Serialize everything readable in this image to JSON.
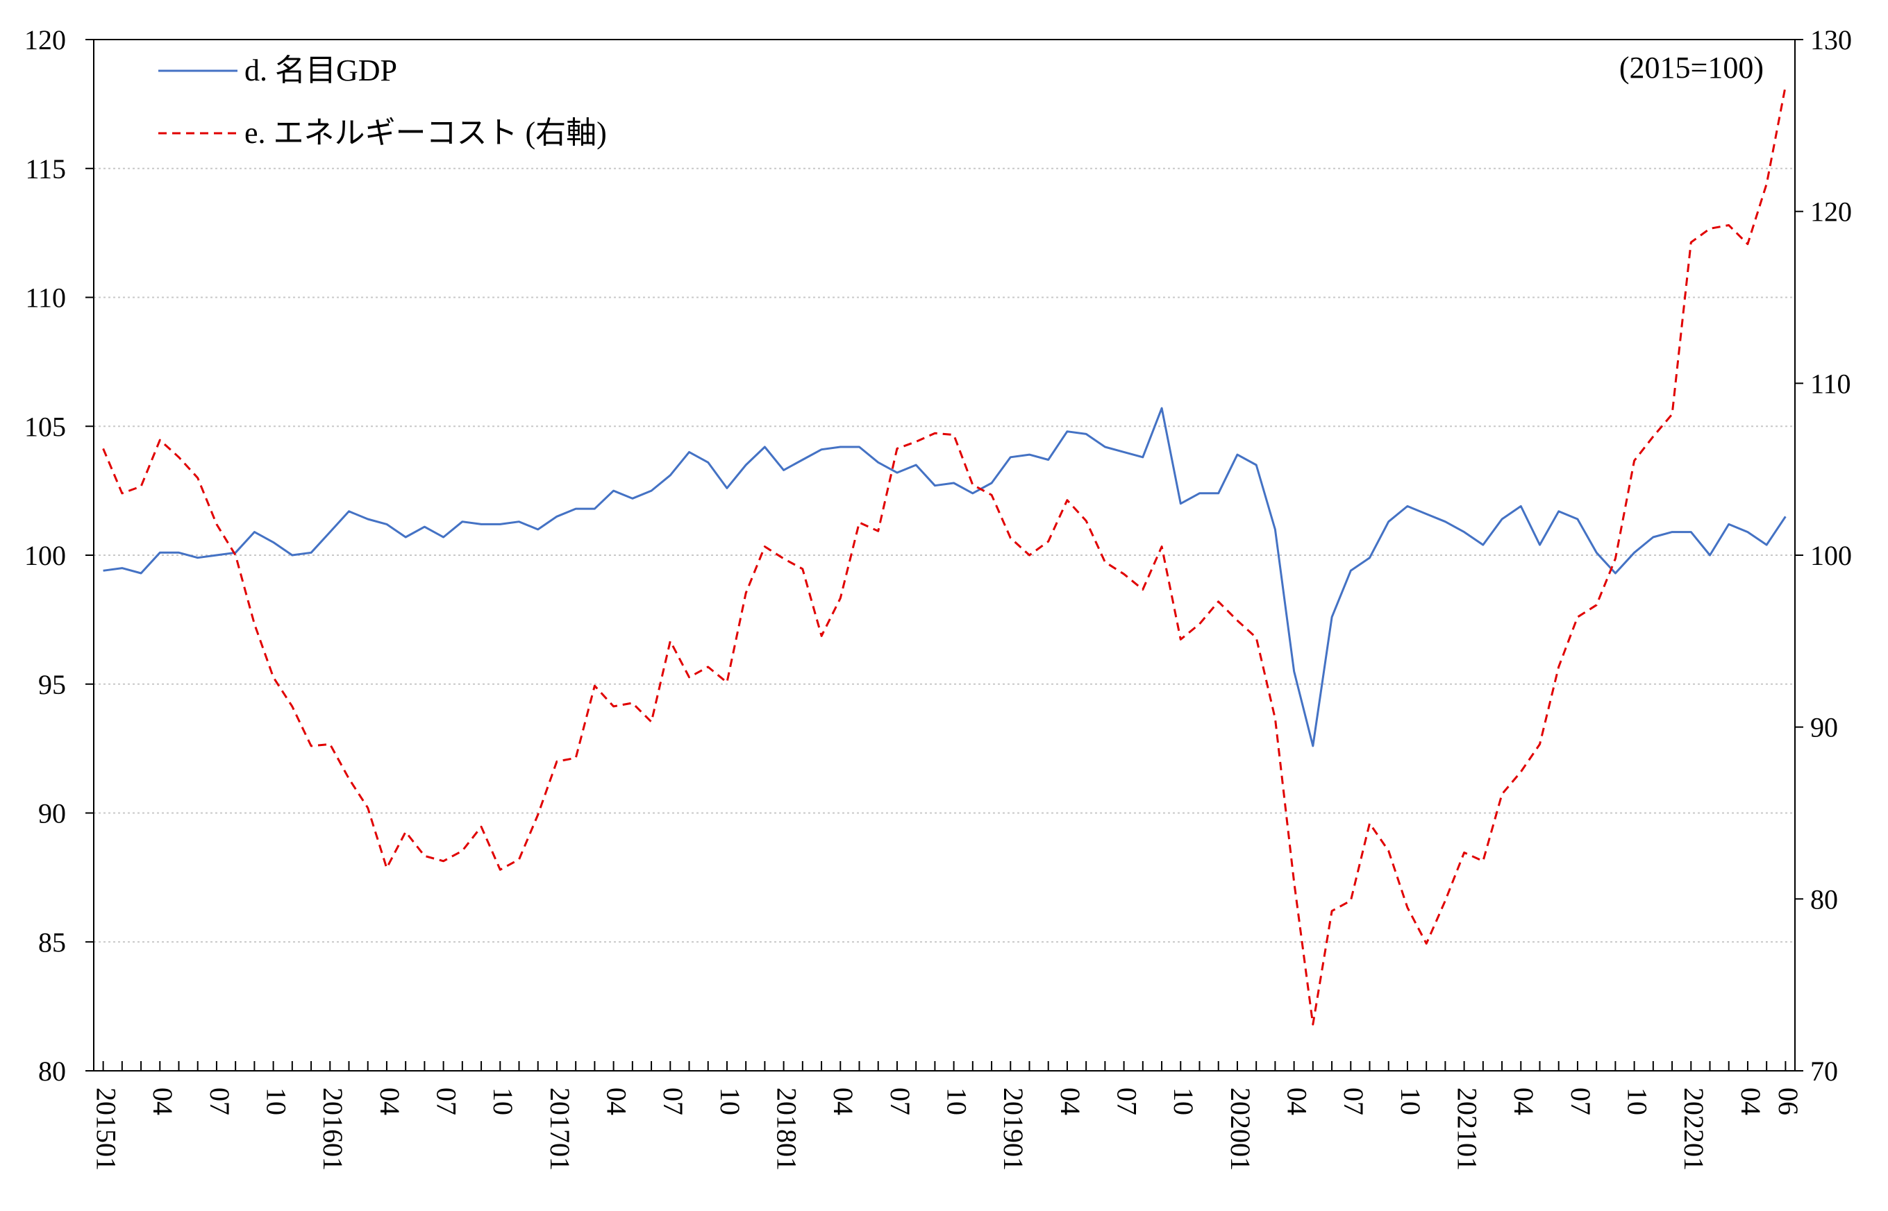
{
  "chart_data": {
    "type": "line",
    "unit_note": "(2015=100)",
    "x": [
      "201501",
      "201502",
      "201503",
      "201504",
      "201505",
      "201506",
      "201507",
      "201508",
      "201509",
      "201510",
      "201511",
      "201512",
      "201601",
      "201602",
      "201603",
      "201604",
      "201605",
      "201606",
      "201607",
      "201608",
      "201609",
      "201610",
      "201611",
      "201612",
      "201701",
      "201702",
      "201703",
      "201704",
      "201705",
      "201706",
      "201707",
      "201708",
      "201709",
      "201710",
      "201711",
      "201712",
      "201801",
      "201802",
      "201803",
      "201804",
      "201805",
      "201806",
      "201807",
      "201808",
      "201809",
      "201810",
      "201811",
      "201812",
      "201901",
      "201902",
      "201903",
      "201904",
      "201905",
      "201906",
      "201907",
      "201908",
      "201909",
      "201910",
      "201911",
      "201912",
      "202001",
      "202002",
      "202003",
      "202004",
      "202005",
      "202006",
      "202007",
      "202008",
      "202009",
      "202010",
      "202011",
      "202012",
      "202101",
      "202102",
      "202103",
      "202104",
      "202105",
      "202106",
      "202107",
      "202108",
      "202109",
      "202110",
      "202111",
      "202112",
      "202201",
      "202202",
      "202203",
      "202204",
      "202205",
      "202206"
    ],
    "x_tick_labels": [
      {
        "i": 0,
        "label": "201501"
      },
      {
        "i": 3,
        "label": "04"
      },
      {
        "i": 6,
        "label": "07"
      },
      {
        "i": 9,
        "label": "10"
      },
      {
        "i": 12,
        "label": "201601"
      },
      {
        "i": 15,
        "label": "04"
      },
      {
        "i": 18,
        "label": "07"
      },
      {
        "i": 21,
        "label": "10"
      },
      {
        "i": 24,
        "label": "201701"
      },
      {
        "i": 27,
        "label": "04"
      },
      {
        "i": 30,
        "label": "07"
      },
      {
        "i": 33,
        "label": "10"
      },
      {
        "i": 36,
        "label": "201801"
      },
      {
        "i": 39,
        "label": "04"
      },
      {
        "i": 42,
        "label": "07"
      },
      {
        "i": 45,
        "label": "10"
      },
      {
        "i": 48,
        "label": "201901"
      },
      {
        "i": 51,
        "label": "04"
      },
      {
        "i": 54,
        "label": "07"
      },
      {
        "i": 57,
        "label": "10"
      },
      {
        "i": 60,
        "label": "202001"
      },
      {
        "i": 63,
        "label": "04"
      },
      {
        "i": 66,
        "label": "07"
      },
      {
        "i": 69,
        "label": "10"
      },
      {
        "i": 72,
        "label": "202101"
      },
      {
        "i": 75,
        "label": "04"
      },
      {
        "i": 78,
        "label": "07"
      },
      {
        "i": 81,
        "label": "10"
      },
      {
        "i": 84,
        "label": "202201"
      },
      {
        "i": 87,
        "label": "04"
      },
      {
        "i": 89,
        "label": "06"
      }
    ],
    "y_left": {
      "min": 80,
      "max": 120,
      "ticks": [
        80,
        85,
        90,
        95,
        100,
        105,
        110,
        115,
        120
      ]
    },
    "y_right": {
      "min": 70,
      "max": 130,
      "ticks": [
        70,
        80,
        90,
        100,
        110,
        120,
        130
      ]
    },
    "grid": true,
    "legend_position": "top-left",
    "series": [
      {
        "name": "d. 名目GDP",
        "axis": "left",
        "color": "#4472c4",
        "style": "solid",
        "values": [
          99.4,
          99.5,
          99.3,
          100.1,
          100.1,
          99.9,
          100.0,
          100.1,
          100.9,
          100.5,
          100.0,
          100.1,
          100.9,
          101.7,
          101.4,
          101.2,
          100.7,
          101.1,
          100.7,
          101.3,
          101.2,
          101.2,
          101.3,
          101.0,
          101.5,
          101.8,
          101.8,
          102.5,
          102.2,
          102.5,
          103.1,
          104.0,
          103.6,
          102.6,
          103.5,
          104.2,
          103.3,
          103.7,
          104.1,
          104.2,
          104.2,
          103.6,
          103.2,
          103.5,
          102.7,
          102.8,
          102.4,
          102.8,
          103.8,
          103.9,
          103.7,
          104.8,
          104.7,
          104.2,
          104.0,
          103.8,
          105.7,
          102.0,
          102.4,
          102.4,
          103.9,
          103.5,
          101.0,
          95.5,
          92.6,
          97.6,
          99.4,
          99.9,
          101.3,
          101.9,
          101.6,
          101.3,
          100.9,
          100.4,
          101.4,
          101.9,
          100.4,
          101.7,
          101.4,
          100.1,
          99.3,
          100.1,
          100.7,
          100.9,
          100.9,
          100.0,
          101.2,
          100.9,
          100.4,
          101.5
        ]
      },
      {
        "name": "e. エネルギーコスト (右軸)",
        "axis": "right",
        "color": "#e00000",
        "style": "dashed",
        "values": [
          106.2,
          103.6,
          104.0,
          106.7,
          105.7,
          104.5,
          101.8,
          100.0,
          96.0,
          92.9,
          91.2,
          88.9,
          89.0,
          87.0,
          85.3,
          81.8,
          83.9,
          82.5,
          82.2,
          82.8,
          84.2,
          81.7,
          82.3,
          84.9,
          88.0,
          88.2,
          92.4,
          91.2,
          91.4,
          90.3,
          95.0,
          92.9,
          93.5,
          92.6,
          97.8,
          100.5,
          99.8,
          99.2,
          95.3,
          97.5,
          101.9,
          101.4,
          106.2,
          106.6,
          107.1,
          107.0,
          104.1,
          103.5,
          101.0,
          100.0,
          100.8,
          103.2,
          102.0,
          99.6,
          98.9,
          98.0,
          100.5,
          95.1,
          96.0,
          97.3,
          96.2,
          95.2,
          90.5,
          81.0,
          72.7,
          79.3,
          79.9,
          84.4,
          82.8,
          79.5,
          77.4,
          79.9,
          82.7,
          82.2,
          86.1,
          87.4,
          89.0,
          93.5,
          96.4,
          97.1,
          99.8,
          105.5,
          106.9,
          108.2,
          118.2,
          119.0,
          119.2,
          118.1,
          121.6,
          127.3
        ]
      }
    ]
  }
}
